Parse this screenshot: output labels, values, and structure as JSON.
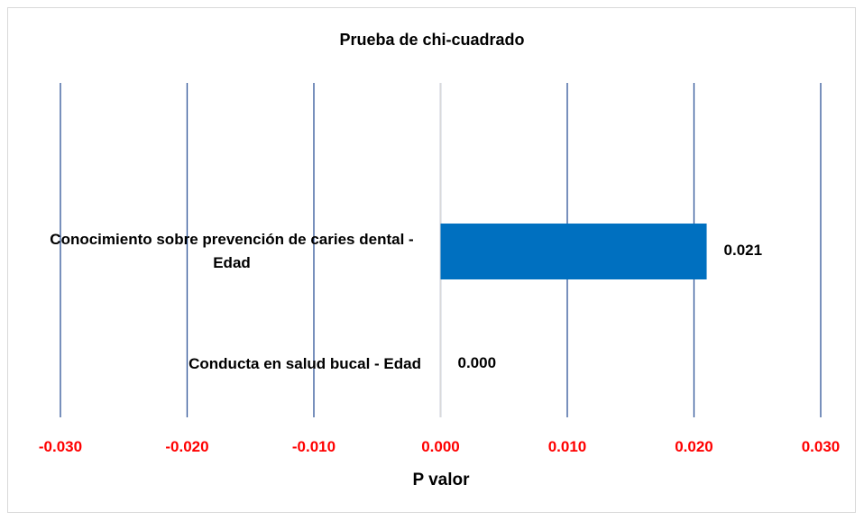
{
  "chart_data": {
    "type": "bar",
    "orientation": "horizontal",
    "title": "Prueba de chi-cuadrado",
    "categories": [
      "Conocimiento sobre prevención de caries dental  - Edad",
      "Conducta en salud bucal - Edad"
    ],
    "values": [
      0.021,
      0.0
    ],
    "value_labels": [
      "0.021",
      "0.000"
    ],
    "color": "#0070c0",
    "x_label": "P valor",
    "xlim": [
      -0.03,
      0.03
    ],
    "xticks": [
      {
        "value": -0.03,
        "label": "-0.030"
      },
      {
        "value": -0.02,
        "label": "-0.020"
      },
      {
        "value": -0.01,
        "label": "-0.010"
      },
      {
        "value": 0,
        "label": "0.000"
      },
      {
        "value": 0.01,
        "label": "0.010"
      },
      {
        "value": 0.02,
        "label": "0.020"
      },
      {
        "value": 0.03,
        "label": "0.030"
      }
    ],
    "grid": true,
    "grid_color": "#2f5597",
    "tick_label_color": "#ff0000"
  }
}
